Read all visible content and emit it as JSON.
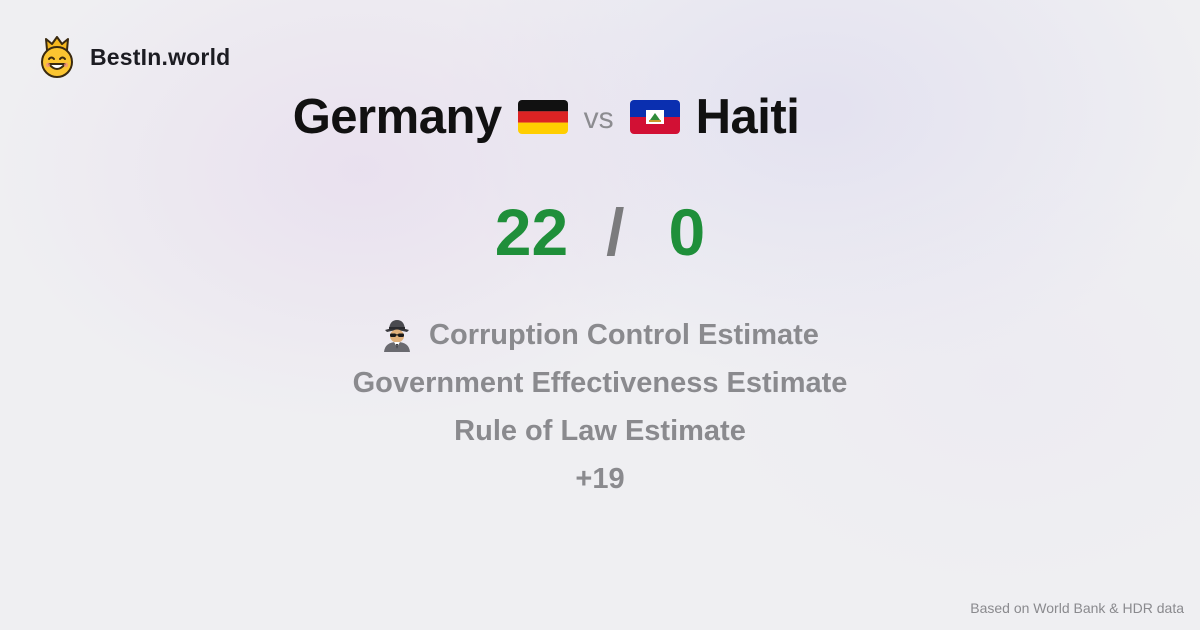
{
  "brand": {
    "name": "BestIn.world",
    "logo_icon": "crowned-smiley-icon"
  },
  "comparison": {
    "country_a": {
      "name": "Germany",
      "flag_icon": "germany-flag-icon"
    },
    "vs_label": "vs",
    "country_b": {
      "name": "Haiti",
      "flag_icon": "haiti-flag-icon"
    }
  },
  "score": {
    "a": "22",
    "separator": "/",
    "b": "0",
    "color": "#1f8f3a"
  },
  "metrics": [
    {
      "label": "Corruption Control Estimate",
      "icon": "detective-icon"
    },
    {
      "label": "Government Effectiveness Estimate"
    },
    {
      "label": "Rule of Law Estimate"
    },
    {
      "label": "+19"
    }
  ],
  "footer": {
    "source": "Based on World Bank & HDR data"
  }
}
